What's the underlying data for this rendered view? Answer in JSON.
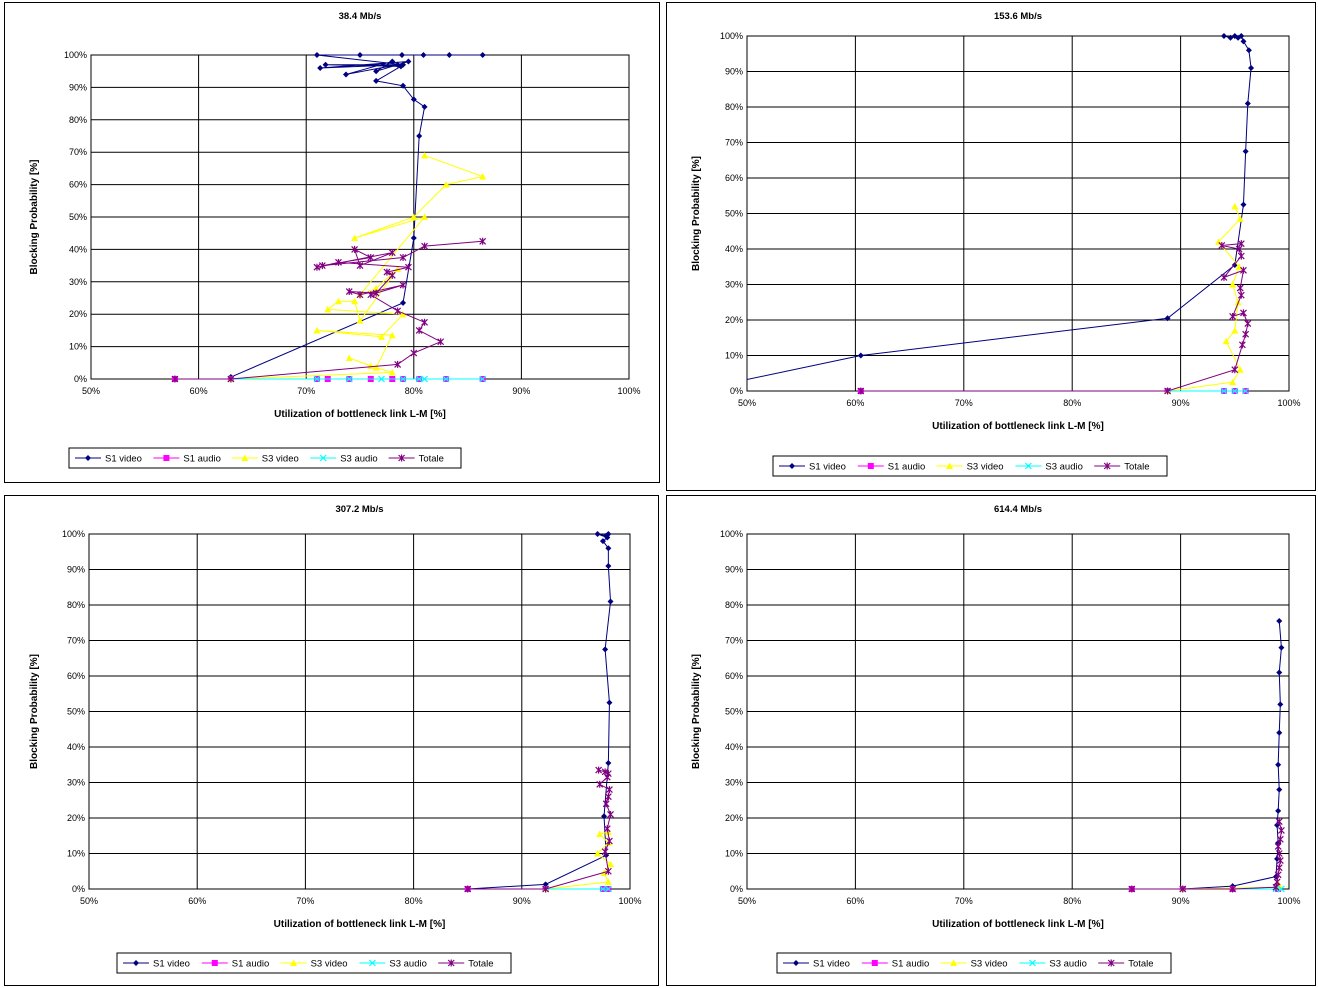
{
  "chart_data": [
    {
      "type": "line",
      "title": "38.4 Mb/s",
      "xlabel": "Utilization of bottleneck link L-M [%]",
      "ylabel": "Blocking Probability [%]",
      "xlim": [
        50,
        100
      ],
      "ylim": [
        0,
        100
      ],
      "x_ticks": [
        "50%",
        "60%",
        "70%",
        "80%",
        "90%",
        "100%"
      ],
      "y_ticks": [
        "0%",
        "10%",
        "20%",
        "30%",
        "40%",
        "50%",
        "60%",
        "70%",
        "80%",
        "90%",
        "100%"
      ],
      "grid": true,
      "legend": "bottom",
      "series": [
        {
          "name": "S1 video",
          "color": "#000080",
          "marker": "diamond",
          "x": [
            63.0,
            79.0,
            80.0,
            80.5,
            81.0,
            80.0,
            79.0,
            76.5,
            78.8,
            71.8,
            78.5,
            73.7,
            78.0,
            76.5,
            79.5,
            71.3,
            79.0,
            71.0,
            75.0,
            78.9,
            80.9,
            83.3,
            86.4
          ],
          "y": [
            0.6,
            23.5,
            43.5,
            75,
            84,
            86.3,
            90.5,
            92,
            96.5,
            97,
            97,
            94,
            98,
            95,
            98,
            96,
            97,
            100,
            100,
            100,
            100,
            100,
            100
          ]
        },
        {
          "name": "S1 audio",
          "color": "#FF00FF",
          "marker": "square",
          "x": [
            57.8,
            63.0,
            71.0,
            72.0,
            74.0,
            76.0,
            78.0,
            79.0,
            80.5,
            83.0,
            86.4
          ],
          "y": [
            0,
            0,
            0,
            0,
            0,
            0,
            0,
            0,
            0,
            0,
            0
          ]
        },
        {
          "name": "S3 video",
          "color": "#FFFF00",
          "marker": "triangle",
          "x": [
            63.0,
            78.0,
            76.0,
            74.0,
            76.5,
            78.0,
            71.0,
            77.0,
            79.0,
            72.0,
            73.0,
            74.5,
            75.0,
            78.5,
            76.5,
            75.0,
            81.0,
            74.5,
            80.0,
            83.0,
            86.4,
            81.0
          ],
          "y": [
            0,
            2,
            4,
            6.5,
            3.5,
            13.5,
            15,
            13,
            20,
            21.5,
            24,
            24,
            18,
            34,
            28,
            26,
            50,
            43.5,
            50,
            60,
            62.5,
            69
          ]
        },
        {
          "name": "S3 audio",
          "color": "#00FFFF",
          "marker": "x",
          "x": [
            63.0,
            71.0,
            74.0,
            77.0,
            79.0,
            80.5,
            81.0,
            83.0,
            86.4
          ],
          "y": [
            0,
            0,
            0,
            0,
            0,
            0,
            0,
            0,
            0
          ]
        },
        {
          "name": "Totale",
          "color": "#800080",
          "marker": "star",
          "x": [
            57.8,
            63.0,
            78.5,
            80.0,
            82.5,
            80.5,
            81.0,
            78.5,
            76.0,
            79.0,
            75.0,
            74.0,
            76.5,
            78.0,
            77.5,
            79.5,
            73.0,
            71.0,
            78.0,
            75.0,
            74.5,
            76.0,
            71.5,
            79.0,
            81.0,
            86.4
          ],
          "y": [
            0,
            0,
            4.5,
            8,
            11.5,
            15,
            17.5,
            21,
            26,
            29,
            26,
            27,
            26.5,
            32,
            33,
            34.5,
            36,
            34.5,
            39,
            35,
            40,
            37.5,
            35,
            37.5,
            41,
            42.5
          ]
        }
      ]
    },
    {
      "type": "line",
      "title": "153.6 Mb/s",
      "xlabel": "Utilization of bottleneck link L-M [%]",
      "ylabel": "Blocking Probability [%]",
      "xlim": [
        50,
        100
      ],
      "ylim": [
        0,
        100
      ],
      "x_ticks": [
        "50%",
        "60%",
        "70%",
        "80%",
        "90%",
        "100%"
      ],
      "y_ticks": [
        "0%",
        "10%",
        "20%",
        "30%",
        "40%",
        "50%",
        "60%",
        "70%",
        "80%",
        "90%",
        "100%"
      ],
      "grid": true,
      "legend": "bottom",
      "series": [
        {
          "name": "S1 video",
          "color": "#000080",
          "marker": "diamond",
          "x": [
            45.0,
            60.5,
            88.8,
            95.0,
            95.8,
            96.0,
            96.2,
            96.5,
            96.3,
            95.8,
            95.6,
            95.3,
            95.0,
            94.6,
            94.0
          ],
          "y": [
            0,
            10,
            20.5,
            35.5,
            52.5,
            67.5,
            81,
            91,
            96,
            98.5,
            100,
            99.5,
            100,
            99.5,
            100
          ]
        },
        {
          "name": "S1 audio",
          "color": "#FF00FF",
          "marker": "square",
          "x": [
            60.5,
            88.8,
            94.0,
            95.0,
            96.0
          ],
          "y": [
            0,
            0,
            0,
            0,
            0
          ]
        },
        {
          "name": "S3 video",
          "color": "#FFFF00",
          "marker": "triangle",
          "x": [
            88.8,
            94.8,
            95.5,
            94.2,
            95.0,
            95.3,
            94.8,
            95.4,
            93.5,
            95.5,
            95.0
          ],
          "y": [
            0,
            2.5,
            6,
            14,
            17,
            25,
            30,
            35,
            42,
            48.5,
            52
          ]
        },
        {
          "name": "S3 audio",
          "color": "#00FFFF",
          "marker": "x",
          "x": [
            88.8,
            94.0,
            95.0,
            96.0
          ],
          "y": [
            0,
            0,
            0,
            0
          ]
        },
        {
          "name": "Totale",
          "color": "#800080",
          "marker": "star",
          "x": [
            60.5,
            88.8,
            95.0,
            95.7,
            96.0,
            96.2,
            95.8,
            94.8,
            95.6,
            95.5,
            95.8,
            94.0,
            95.6,
            95.4,
            93.8,
            95.6
          ],
          "y": [
            0,
            0,
            6,
            13,
            16,
            19,
            22,
            21,
            27,
            29,
            34,
            32,
            38,
            40,
            41,
            41.5
          ]
        }
      ]
    },
    {
      "type": "line",
      "title": "307.2 Mb/s",
      "xlabel": "Utilization of bottleneck link L-M [%]",
      "ylabel": "Blocking Probability [%]",
      "xlim": [
        50,
        100
      ],
      "ylim": [
        0,
        100
      ],
      "x_ticks": [
        "50%",
        "60%",
        "70%",
        "80%",
        "90%",
        "100%"
      ],
      "y_ticks": [
        "0%",
        "10%",
        "20%",
        "30%",
        "40%",
        "50%",
        "60%",
        "70%",
        "80%",
        "90%",
        "100%"
      ],
      "grid": true,
      "legend": "bottom",
      "series": [
        {
          "name": "S1 video",
          "color": "#000080",
          "marker": "diamond",
          "x": [
            85.0,
            92.2,
            97.8,
            97.6,
            98.0,
            98.1,
            97.7,
            98.2,
            98.0,
            98.0,
            97.5,
            97.9,
            97.0,
            97.8,
            98.0
          ],
          "y": [
            0,
            1.3,
            9.5,
            20.5,
            35.5,
            52.5,
            67.5,
            81,
            91,
            96,
            98,
            99,
            100,
            99.5,
            100
          ]
        },
        {
          "name": "S1 audio",
          "color": "#FF00FF",
          "marker": "square",
          "x": [
            85.0,
            92.2,
            97.5,
            98.0
          ],
          "y": [
            0,
            0,
            0,
            0
          ]
        },
        {
          "name": "S3 video",
          "color": "#FFFF00",
          "marker": "triangle",
          "x": [
            92.2,
            98.0,
            97.6,
            98.2,
            97.0,
            98.0,
            97.2,
            98.0
          ],
          "y": [
            0,
            2,
            4.5,
            7,
            10,
            13,
            15.5,
            16
          ]
        },
        {
          "name": "S3 audio",
          "color": "#00FFFF",
          "marker": "x",
          "x": [
            92.2,
            97.5,
            98.0
          ],
          "y": [
            0,
            0,
            0
          ]
        },
        {
          "name": "Totale",
          "color": "#800080",
          "marker": "star",
          "x": [
            85.0,
            92.2,
            98.0,
            97.7,
            98.1,
            97.9,
            98.2,
            97.8,
            98.0,
            98.1,
            97.2,
            97.9,
            98.0,
            97.7,
            97.1
          ],
          "y": [
            0,
            0,
            5,
            10.5,
            13.5,
            17,
            21,
            24,
            26,
            28,
            29.5,
            31.5,
            32.5,
            33,
            33.5
          ]
        }
      ]
    },
    {
      "type": "line",
      "title": "614.4 Mb/s",
      "xlabel": "Utilization of bottleneck link L-M [%]",
      "ylabel": "Blocking Probability [%]",
      "xlim": [
        50,
        100
      ],
      "ylim": [
        0,
        100
      ],
      "x_ticks": [
        "50%",
        "60%",
        "70%",
        "80%",
        "90%",
        "100%"
      ],
      "y_ticks": [
        "0%",
        "10%",
        "20%",
        "30%",
        "40%",
        "50%",
        "60%",
        "70%",
        "80%",
        "90%",
        "100%"
      ],
      "grid": true,
      "legend": "bottom",
      "series": [
        {
          "name": "S1 video",
          "color": "#000080",
          "marker": "diamond",
          "x": [
            85.5,
            90.2,
            94.8,
            98.8,
            98.9,
            99.0,
            98.9,
            99.0,
            99.1,
            99.0,
            99.1,
            99.2,
            99.1,
            99.3,
            99.1
          ],
          "y": [
            0,
            0,
            0.8,
            3.5,
            8.5,
            13,
            18,
            22,
            28,
            35,
            44,
            52,
            61,
            68,
            75.5
          ]
        },
        {
          "name": "S1 audio",
          "color": "#FF00FF",
          "marker": "square",
          "x": [
            85.5,
            90.2,
            94.8,
            99.0
          ],
          "y": [
            0,
            0,
            0,
            0
          ]
        },
        {
          "name": "S3 video",
          "color": "#FFFF00",
          "marker": "triangle",
          "x": [
            90.2,
            98.9,
            99.1,
            99.0
          ],
          "y": [
            0,
            0.5,
            1,
            1.5
          ]
        },
        {
          "name": "S3 audio",
          "color": "#00FFFF",
          "marker": "x",
          "x": [
            90.2,
            98.8,
            99.3
          ],
          "y": [
            0,
            0,
            0
          ]
        },
        {
          "name": "Totale",
          "color": "#800080",
          "marker": "star",
          "x": [
            85.5,
            90.2,
            94.8,
            98.8,
            98.9,
            99.0,
            99.1,
            99.2,
            99.1,
            99.0,
            99.2,
            99.3,
            99.1
          ],
          "y": [
            0,
            0,
            0,
            0.5,
            2,
            4,
            6,
            8,
            10,
            12,
            14,
            16.5,
            19
          ]
        }
      ]
    }
  ]
}
